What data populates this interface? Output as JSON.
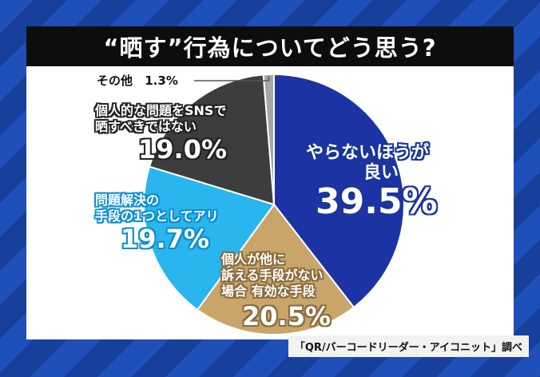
{
  "title": "“晒す”行為についてどう思う?",
  "source": "「QR/バーコードリーダー・アイコニット」調べ",
  "chart_data": {
    "type": "pie",
    "start": "top, clockwise",
    "slices": [
      {
        "label_lines": [
          "やらないほうが",
          "良い"
        ],
        "value": 39.5,
        "value_text": "39.5%",
        "color": "#1c34a3"
      },
      {
        "label_lines": [
          "個人が他に",
          "訴える手段がない",
          "場合 有効な手段"
        ],
        "value": 20.5,
        "value_text": "20.5%",
        "color": "#c9a56a"
      },
      {
        "label_lines": [
          "問題解決の",
          "手段の1つとしてアリ"
        ],
        "value": 19.7,
        "value_text": "19.7%",
        "color": "#29b6ef"
      },
      {
        "label_lines": [
          "個人的な問題をSNSで",
          "晒すべきではない"
        ],
        "value": 19.0,
        "value_text": "19.0%",
        "color": "#3d3d3d"
      },
      {
        "label_lines": [
          "その他"
        ],
        "value": 1.3,
        "value_text": "1.3%",
        "color": "#a6a6a6"
      }
    ]
  }
}
